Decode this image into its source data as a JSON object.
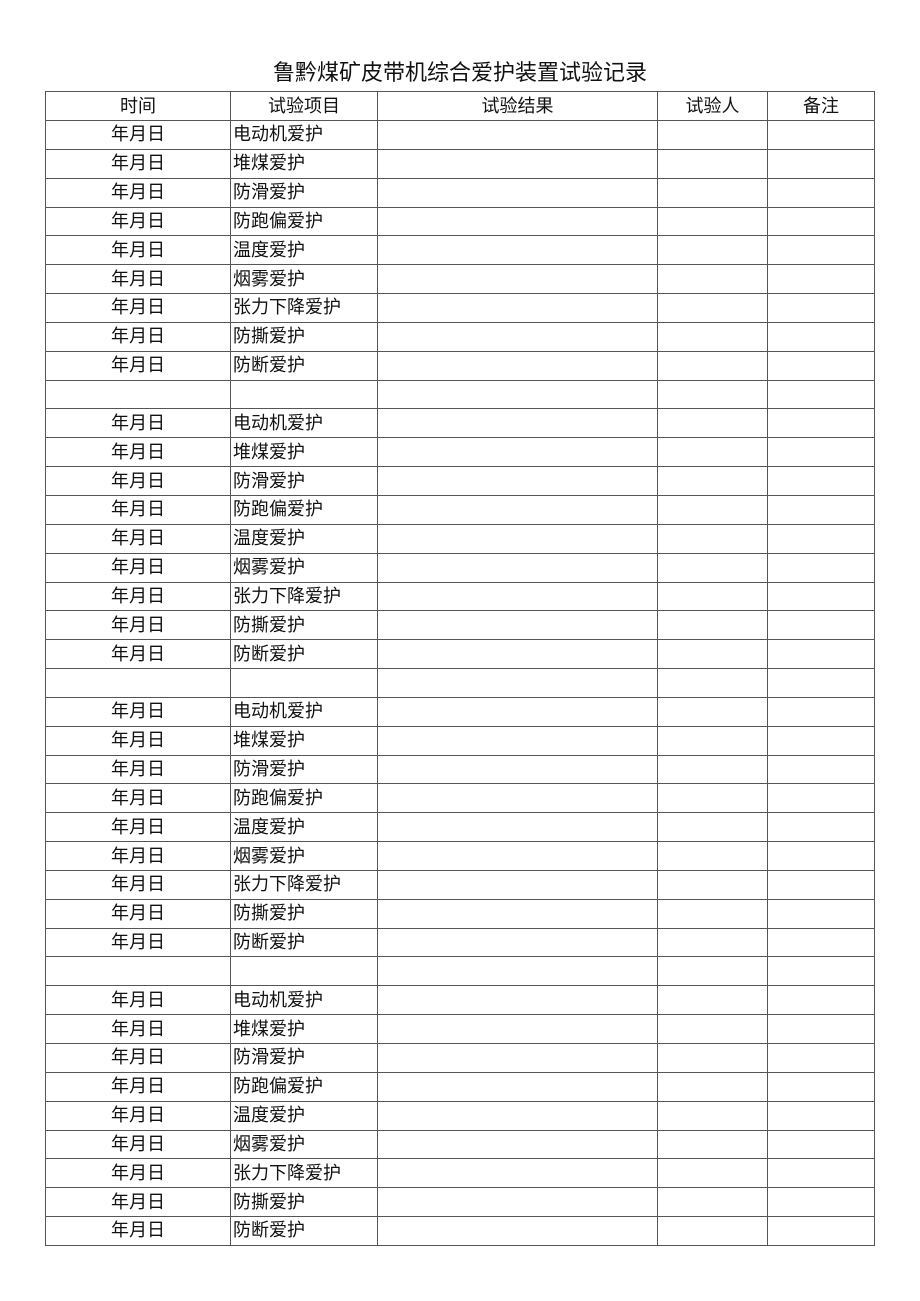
{
  "title": "鲁黔煤矿皮带机综合爱护装置试验记录",
  "headers": [
    "时间",
    "试验项目",
    "试验结果",
    "试验人",
    "备注"
  ],
  "rows": [
    {
      "time": "年月日",
      "item": "电动机爱护"
    },
    {
      "time": "年月日",
      "item": "堆煤爱护"
    },
    {
      "time": "年月日",
      "item": "防滑爱护"
    },
    {
      "time": "年月日",
      "item": "防跑偏爱护"
    },
    {
      "time": "年月日",
      "item": "温度爱护"
    },
    {
      "time": "年月日",
      "item": "烟雾爱护"
    },
    {
      "time": "年月日",
      "item": "张力下降爱护"
    },
    {
      "time": "年月日",
      "item": "防撕爱护"
    },
    {
      "time": "年月日",
      "item": "防断爱护"
    },
    {
      "time": "",
      "item": ""
    },
    {
      "time": "年月日",
      "item": "电动机爱护"
    },
    {
      "time": "年月日",
      "item": "堆煤爱护"
    },
    {
      "time": "年月日",
      "item": "防滑爱护"
    },
    {
      "time": "年月日",
      "item": "防跑偏爱护"
    },
    {
      "time": "年月日",
      "item": "温度爱护"
    },
    {
      "time": "年月日",
      "item": "烟雾爱护"
    },
    {
      "time": "年月日",
      "item": "张力下降爱护"
    },
    {
      "time": "年月日",
      "item": "防撕爱护"
    },
    {
      "time": "年月日",
      "item": "防断爱护"
    },
    {
      "time": "",
      "item": ""
    },
    {
      "time": "年月日",
      "item": "电动机爱护"
    },
    {
      "time": "年月日",
      "item": "堆煤爱护"
    },
    {
      "time": "年月日",
      "item": "防滑爱护"
    },
    {
      "time": "年月日",
      "item": "防跑偏爱护"
    },
    {
      "time": "年月日",
      "item": "温度爱护"
    },
    {
      "time": "年月日",
      "item": "烟雾爱护"
    },
    {
      "time": "年月日",
      "item": "张力下降爱护"
    },
    {
      "time": "年月日",
      "item": "防撕爱护"
    },
    {
      "time": "年月日",
      "item": "防断爱护"
    },
    {
      "time": "",
      "item": ""
    },
    {
      "time": "年月日",
      "item": "电动机爱护"
    },
    {
      "time": "年月日",
      "item": "堆煤爱护"
    },
    {
      "time": "年月日",
      "item": "防滑爱护"
    },
    {
      "time": "年月日",
      "item": "防跑偏爱护"
    },
    {
      "time": "年月日",
      "item": "温度爱护"
    },
    {
      "time": "年月日",
      "item": "烟雾爱护"
    },
    {
      "time": "年月日",
      "item": "张力下降爱护"
    },
    {
      "time": "年月日",
      "item": "防撕爱护"
    },
    {
      "time": "年月日",
      "item": "防断爱护"
    }
  ]
}
